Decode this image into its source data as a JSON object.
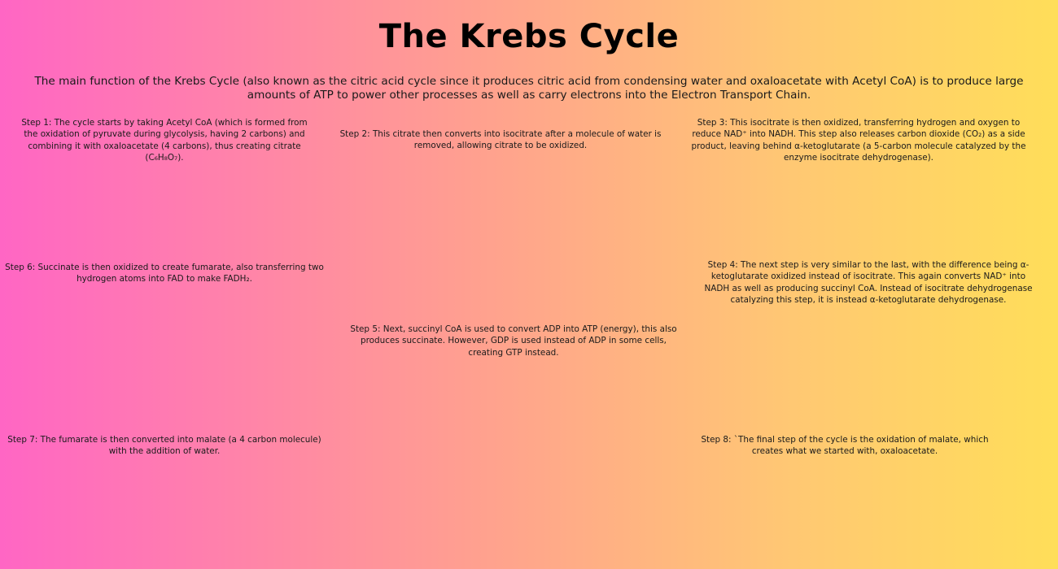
{
  "title": "The Krebs Cycle",
  "intro": "The main function of the Krebs Cycle (also known as the citric acid cycle since it produces citric acid from condensing water and oxaloacetate with Acetyl CoA) is to produce large amounts of ATP to power other processes as well as carry electrons into the Electron Transport Chain.",
  "steps": {
    "s1": "Step 1: The cycle starts by taking Acetyl CoA (which is formed from the oxidation of pyruvate during glycolysis, having 2 carbons) and combining it with oxaloacetate (4 carbons), thus creating citrate (C₆H₈O₇).",
    "s2": "Step 2:  This citrate then converts into isocitrate after a molecule of water is removed, allowing citrate to be oxidized.",
    "s3": "Step 3:  This isocitrate is then oxidized, transferring hydrogen and oxygen to reduce NAD⁺ into NADH. This step also releases carbon dioxide (CO₂) as a side product, leaving behind α-ketoglutarate (a 5-carbon molecule catalyzed by the enzyme isocitrate dehydrogenase).",
    "s4": "Step 4:  The next step is very similar to the last, with the difference being α-ketoglutarate oxidized instead of isocitrate. This again converts NAD⁺ into NADH as well as producing succinyl CoA. Instead of isocitrate dehydrogenase catalyzing this step, it is instead α-ketoglutarate dehydrogenase.",
    "s5": "Step 5: Next, succinyl CoA is used to convert ADP into ATP (energy), this also produces succinate. However, GDP is used instead of ADP in some cells, creating GTP instead.",
    "s6": "Step 6: Succinate is then oxidized to create fumarate, also transferring two hydrogen atoms into FAD to make FADH₂.",
    "s7": "Step 7: The fumarate is then converted into malate (a 4 carbon molecule) with the addition of water.",
    "s8": "Step 8:  `The final step of the cycle is the oxidation of malate, which creates what we started with, oxaloacetate."
  },
  "colors": {
    "gradient_left": "#ff66c4",
    "gradient_mid": "#ffa08f",
    "gradient_right": "#ffde59"
  }
}
